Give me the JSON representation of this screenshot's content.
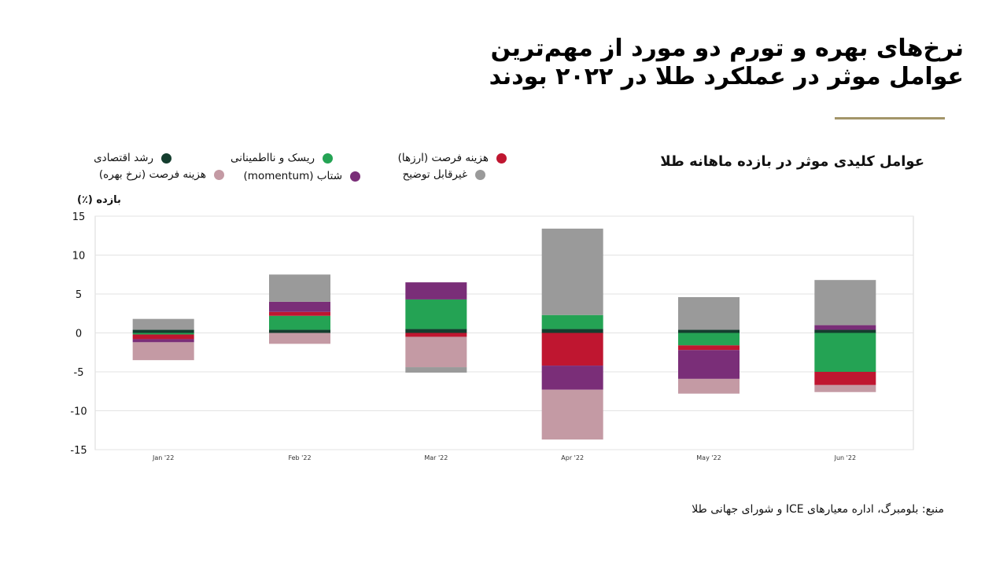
{
  "header": {
    "title_line1": "نرخ‌های بهره و تورم دو مورد از مهم‌ترین",
    "title_line2": "عوامل موثر در عملکرد طلا در ۲۰۲۲ بودند"
  },
  "source_text": "منبع: بلومبرگ، اداره معیارهای ICE  و شورای جهانی طلا",
  "colors": {
    "economic_growth": "#143d2e",
    "risk": "#24a354",
    "opportunity_fx": "#bf1630",
    "momentum": "#7a2e78",
    "opportunity_rates": "#c49aa4",
    "unexplained": "#9a9a9a",
    "accent_rule": "#a39569"
  },
  "chart_data": {
    "type": "bar",
    "stacked": true,
    "title": "عوامل کلیدی موثر در بازده ماهانه طلا",
    "ylabel": "بازده (٪)",
    "xlabel": "",
    "ylim": [
      -15,
      15
    ],
    "yticks": [
      15,
      10,
      5,
      0,
      -5,
      -10,
      -15
    ],
    "ytick_labels": [
      "15",
      "10",
      "5",
      "0",
      "-5",
      "-10",
      "-15"
    ],
    "grid": true,
    "legend_placement": "top-left",
    "categories": [
      "Jan '22",
      "Feb '22",
      "Mar '22",
      "Apr '22",
      "May '22",
      "Jun '22"
    ],
    "series": [
      {
        "name": "رشد اقتصادی",
        "key": "economic_growth",
        "values": [
          0.4,
          0.4,
          0.5,
          0.5,
          0.4,
          0.4
        ]
      },
      {
        "name": "ریسک و نااطمینانی",
        "key": "risk",
        "values": [
          -0.2,
          1.8,
          3.8,
          1.8,
          -1.6,
          -5.0
        ]
      },
      {
        "name": "هزینه فرصت (ارزها)",
        "key": "opportunity_fx",
        "values": [
          -0.6,
          0.5,
          -0.5,
          -4.2,
          -0.6,
          -1.7
        ]
      },
      {
        "name": "شتاب (momentum)",
        "key": "momentum",
        "values": [
          -0.4,
          1.3,
          2.2,
          -3.1,
          -3.7,
          0.6
        ]
      },
      {
        "name": "هزینه فرصت (نرخ بهره)",
        "key": "opportunity_rates",
        "values": [
          -2.3,
          -1.4,
          -3.9,
          -6.4,
          -1.9,
          -0.9
        ]
      },
      {
        "name": "غیرقابل توضیح",
        "key": "unexplained",
        "values": [
          1.4,
          3.5,
          0,
          11.1,
          4.2,
          5.8
        ]
      },
      {
        "name": "غیرقابل توضیح",
        "key": "unexplained",
        "values": [
          0,
          0,
          -0.7,
          0,
          0,
          0
        ]
      }
    ]
  }
}
